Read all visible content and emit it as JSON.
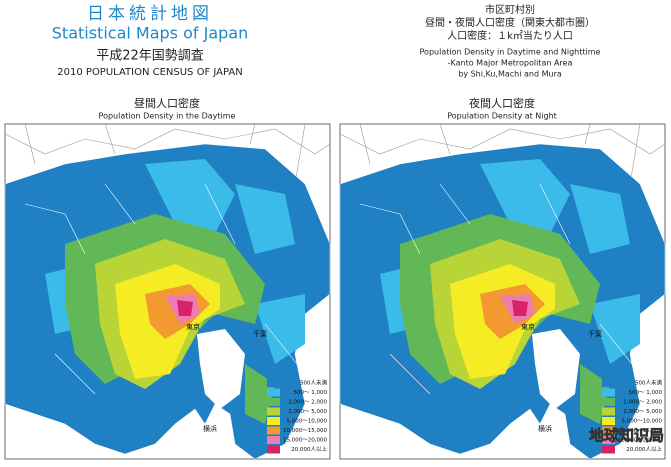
{
  "header": {
    "title_ja": "日本統計地図",
    "title_en": "Statistical Maps of Japan",
    "census_ja": "平成22年国勢調査",
    "census_en": "2010 POPULATION CENSUS OF JAPAN"
  },
  "subtitle": {
    "line1": "市区町村別",
    "line2": "昼間・夜間人口密度（関東大都市圏）",
    "line3": "人口密度：１k㎡当たり人口",
    "en1": "Population Density in Daytime and Nighttime",
    "en2": "-Kanto Major Metropolitan Area",
    "en3": "by Shi,Ku,Machi and Mura"
  },
  "maps": [
    {
      "title_ja": "昼間人口密度",
      "title_en": "Population Density in the Daytime"
    },
    {
      "title_ja": "夜間人口密度",
      "title_en": "Population Density at Night"
    }
  ],
  "legend": [
    {
      "label": "500人未満",
      "color": "#1f80c3"
    },
    {
      "label": "500〜 1,000",
      "color": "#3bbbe9"
    },
    {
      "label": "1,000〜 2,000",
      "color": "#62b757"
    },
    {
      "label": "2,000〜 5,000",
      "color": "#b8d436"
    },
    {
      "label": "5,000〜10,000",
      "color": "#f6ec24"
    },
    {
      "label": "10,000〜15,000",
      "color": "#f29a30"
    },
    {
      "label": "15,000〜20,000",
      "color": "#ee7cb1"
    },
    {
      "label": "20,000人以上",
      "color": "#d9216b"
    }
  ],
  "place_labels": [
    "東京",
    "千葉",
    "横浜"
  ],
  "watermark": "地球知识局"
}
